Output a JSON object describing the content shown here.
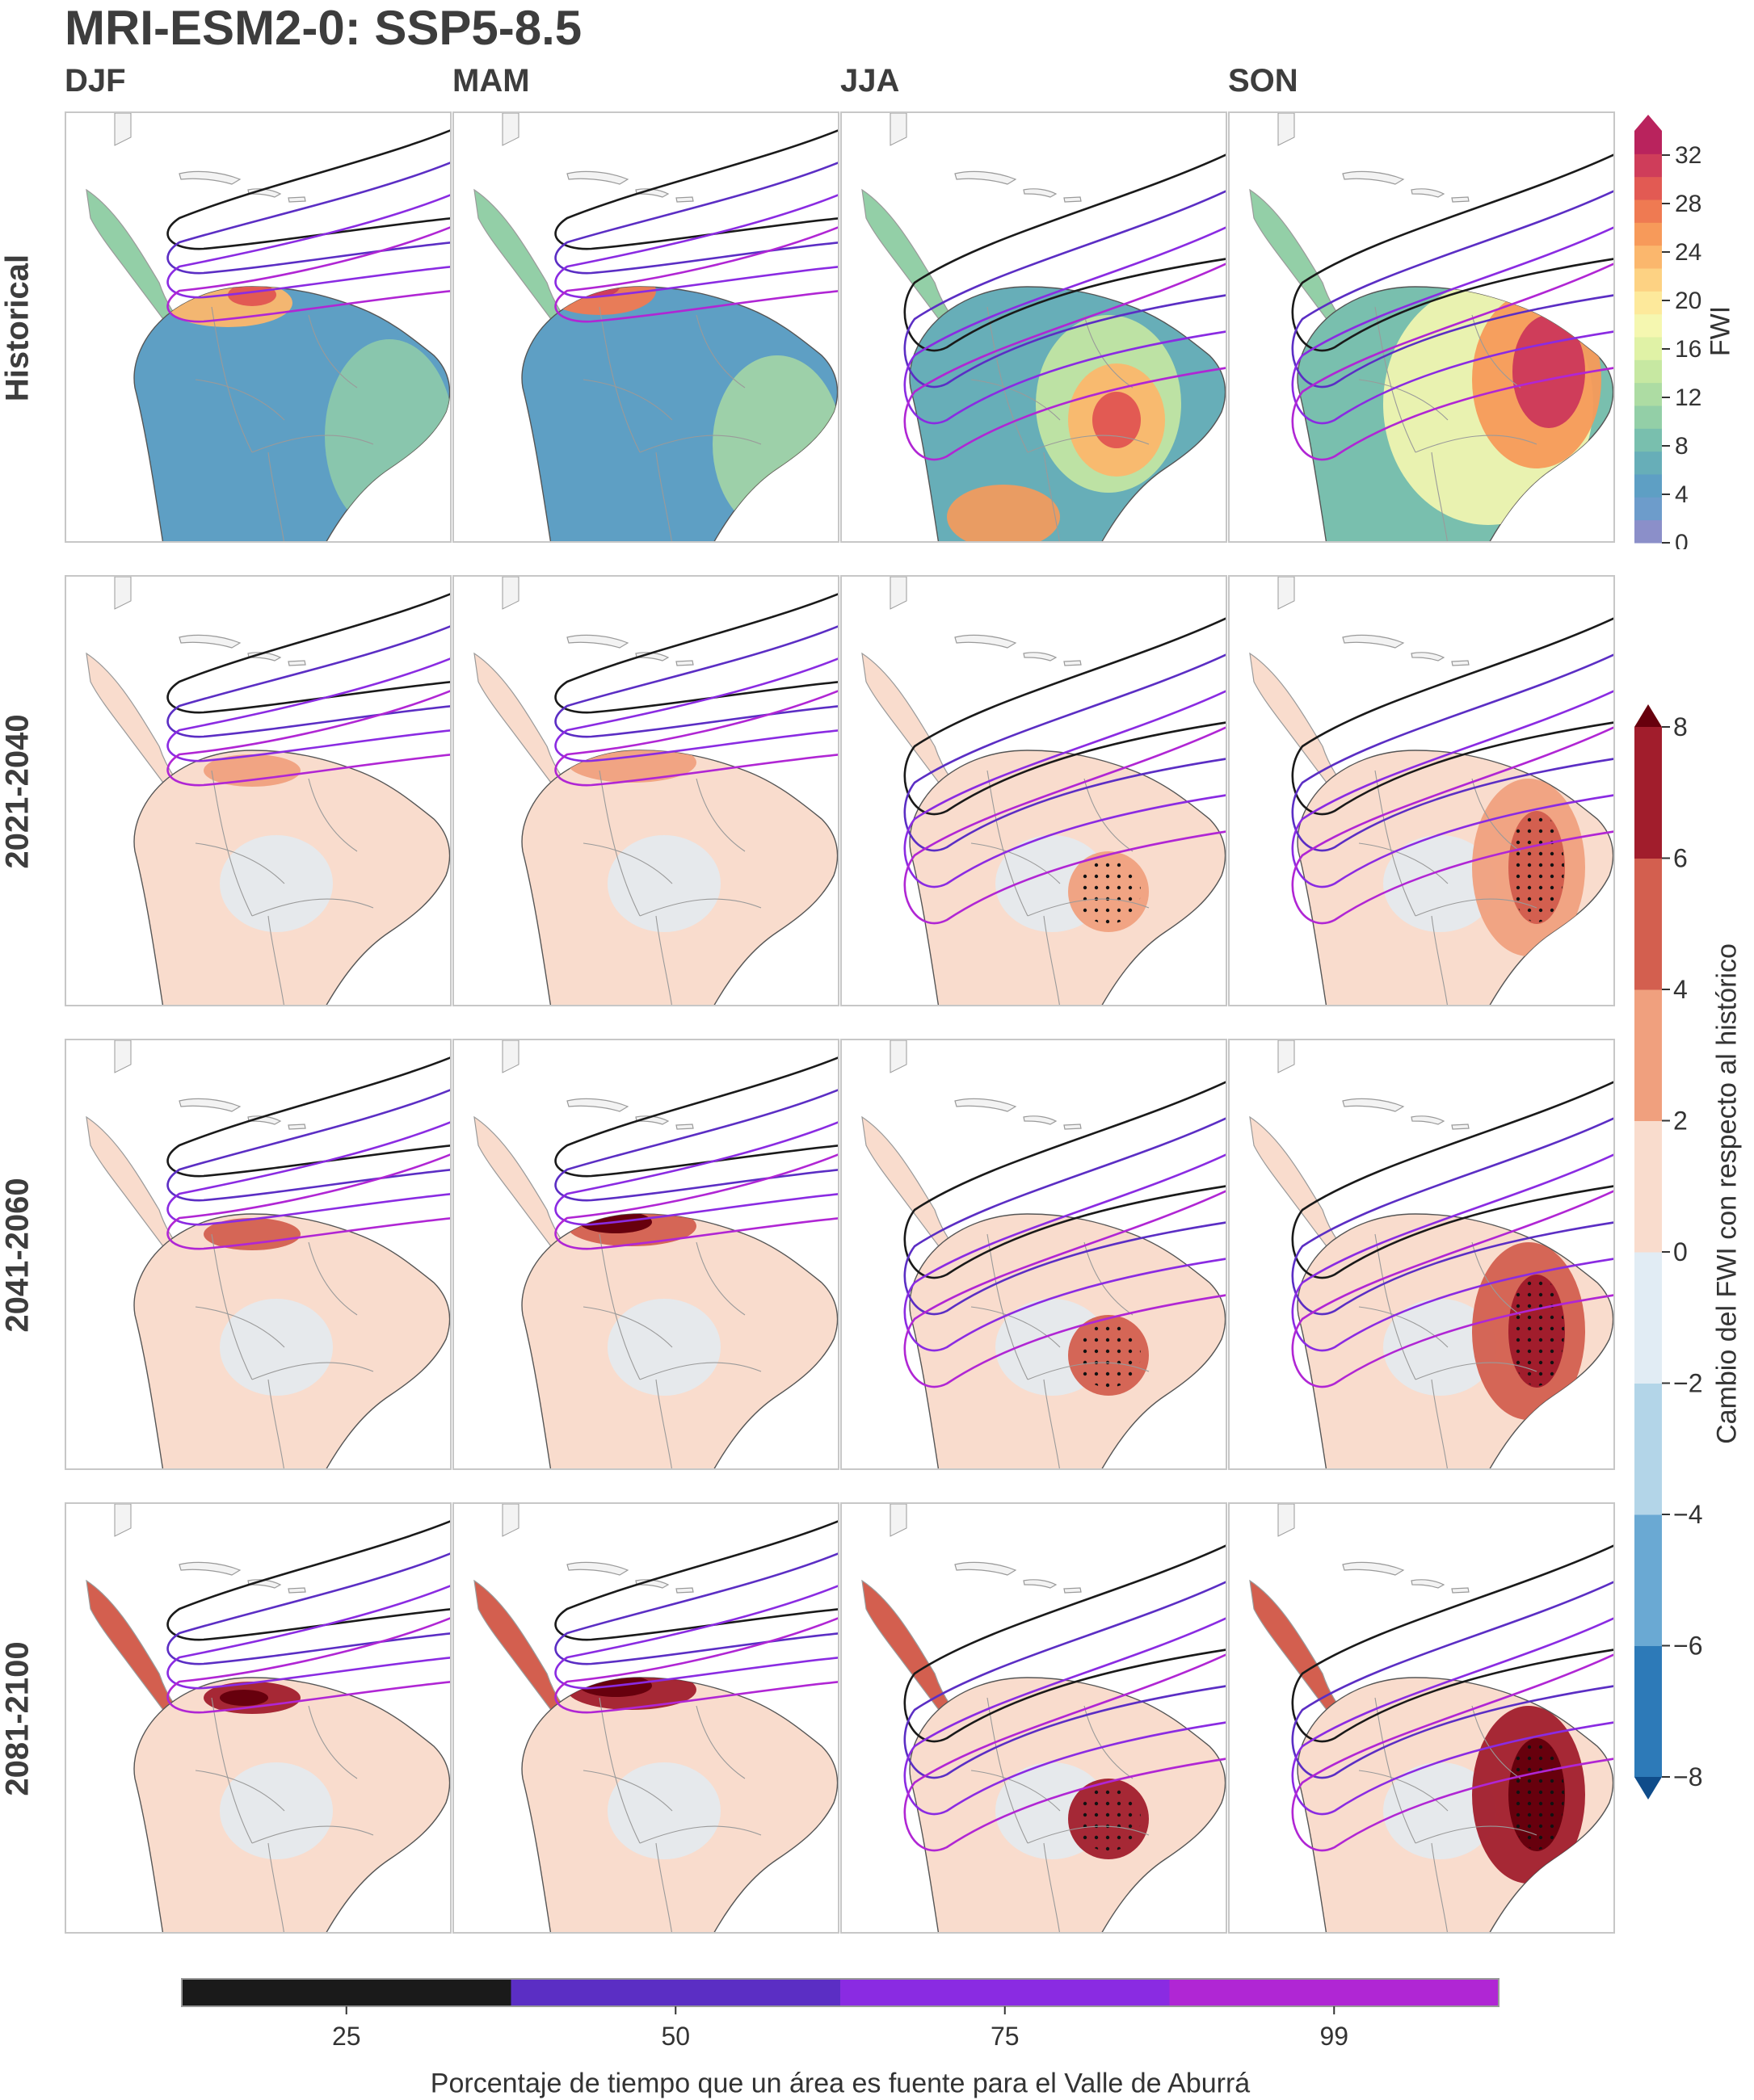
{
  "title": "MRI-ESM2-0: SSP5-8.5",
  "columns": [
    "DJF",
    "MAM",
    "JJA",
    "SON"
  ],
  "rows": [
    "Historical",
    "2021-2040",
    "2041-2060",
    "2081-2100"
  ],
  "chart_data": [
    {
      "type": "heatmap",
      "name": "fwi-historical",
      "colorbar": {
        "label": "FWI",
        "ticks": [
          0,
          4,
          8,
          12,
          16,
          20,
          24,
          28,
          32
        ],
        "levels": [
          0,
          2,
          4,
          6,
          8,
          10,
          12,
          14,
          16,
          18,
          20,
          22,
          24,
          26,
          28,
          30,
          32,
          34
        ],
        "colors": [
          "#8b8fc9",
          "#6d9ccb",
          "#5e9fc4",
          "#67aeb8",
          "#79bfae",
          "#93cfa7",
          "#addca3",
          "#c7e8a2",
          "#e0f2a6",
          "#f5f7b0",
          "#fde99b",
          "#fdd283",
          "#fbb76d",
          "#f79a5a",
          "#ef7a52",
          "#e25a53",
          "#cf3d5a",
          "#b9235d"
        ],
        "extend": "max"
      }
    },
    {
      "type": "heatmap",
      "name": "fwi-change",
      "colorbar": {
        "label": "Cambio del FWI con respecto al histórico",
        "ticks": [
          -8,
          -6,
          -4,
          -2,
          0,
          2,
          4,
          6,
          8
        ],
        "colors": [
          "#0f4c8a",
          "#2d7ab8",
          "#6aa9d3",
          "#b3d5e8",
          "#e1ecf4",
          "#f9dccd",
          "#f0a07e",
          "#d35f4f",
          "#a11d2c",
          "#67000d"
        ],
        "extend": "both"
      }
    },
    {
      "type": "contour",
      "name": "source-frequency",
      "colorbar": {
        "label": "Porcentaje de tiempo que un área es fuente para el Valle de Aburrá",
        "ticks": [
          25,
          50,
          75,
          99
        ],
        "colors": [
          "#1a1a1a",
          "#5b2ec4",
          "#8a2be2",
          "#b026d4"
        ]
      }
    }
  ],
  "colors": {
    "land": "#f3f3f3",
    "country_border": "#9a9a9a",
    "contour_25": "#1a1a1a",
    "contour_50": "#5b2ec4",
    "contour_75": "#8a2be2",
    "contour_99": "#b026d4",
    "significance": "#111111"
  }
}
